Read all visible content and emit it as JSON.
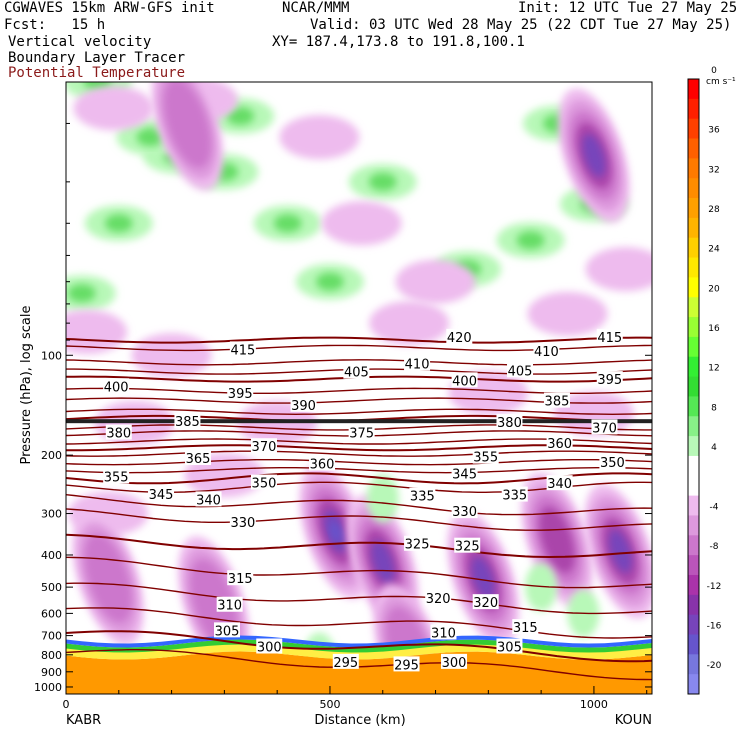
{
  "header": {
    "left_line1": "CGWAVES 15km ARW-GFS init",
    "center_line1": "NCAR/MMM",
    "right_line1": "Init: 12 UTC Tue 27 May 25",
    "left_line2": "Fcst:   15 h",
    "right_line2": "Valid: 03 UTC Wed 28 May 25 (22 CDT Tue 27 May 25)",
    "var1": "Vertical velocity",
    "var2": "Boundary Layer Tracer",
    "var3": "Potential Temperature",
    "xy": "XY= 187.4,173.8 to 191.8,100.1",
    "var3_color": "#8b1a1a"
  },
  "chart_data": {
    "type": "heatmap",
    "title": "Vertical velocity",
    "xlabel": "Distance (km)",
    "ylabel": "Pressure (hPa), log scale",
    "x_ticks": [
      0,
      500,
      1000
    ],
    "x_range": [
      0,
      1110
    ],
    "y_ticks": [
      100,
      200,
      300,
      400,
      500,
      600,
      700,
      800,
      900,
      1000
    ],
    "y_range": [
      15,
      1050
    ],
    "y_scale": "log",
    "left_endpoint": "KABR",
    "right_endpoint": "KOUN",
    "colorbar": {
      "units": "cm s⁻¹",
      "tick_labels": [
        "36",
        "32",
        "28",
        "24",
        "20",
        "16",
        "12",
        "8",
        "4",
        "0",
        "-4",
        "-8",
        "-12",
        "-16",
        "-20"
      ],
      "levels": [
        40,
        38,
        36,
        34,
        32,
        30,
        28,
        26,
        24,
        22,
        20,
        18,
        16,
        14,
        12,
        10,
        8,
        6,
        4,
        2,
        -2,
        -4,
        -6,
        -8,
        -10,
        -12,
        -14,
        -16,
        -18,
        -20,
        -22
      ],
      "colors": [
        "#ff0000",
        "#ff2000",
        "#ff4000",
        "#ff6000",
        "#ff7a00",
        "#ff8c00",
        "#ffa000",
        "#ffb400",
        "#ffd000",
        "#ffe800",
        "#ffff00",
        "#ccff33",
        "#99ff33",
        "#66ff33",
        "#33ee33",
        "#33dd33",
        "#55e855",
        "#88f088",
        "#b8f8b8",
        "#ffffff",
        "#ffffff",
        "#eebbee",
        "#dd99dd",
        "#cc77cc",
        "#bb55bb",
        "#aa33aa",
        "#8833aa",
        "#7744bb",
        "#6655cc",
        "#7777dd",
        "#8888ee"
      ]
    },
    "theta_contours": [
      {
        "value": 415,
        "pressure": 95
      },
      {
        "value": 420,
        "pressure": 90
      },
      {
        "value": 410,
        "pressure": 105
      },
      {
        "value": 405,
        "pressure": 112
      },
      {
        "value": 400,
        "pressure": 118
      },
      {
        "value": 395,
        "pressure": 128
      },
      {
        "value": 390,
        "pressure": 137
      },
      {
        "value": 385,
        "pressure": 148
      },
      {
        "value": 380,
        "pressure": 155
      },
      {
        "value": 375,
        "pressure": 165
      },
      {
        "value": 370,
        "pressure": 172
      },
      {
        "value": 365,
        "pressure": 182
      },
      {
        "value": 360,
        "pressure": 190
      },
      {
        "value": 355,
        "pressure": 198
      },
      {
        "value": 350,
        "pressure": 210
      },
      {
        "value": 345,
        "pressure": 222
      },
      {
        "value": 340,
        "pressure": 235
      },
      {
        "value": 335,
        "pressure": 250
      },
      {
        "value": 330,
        "pressure": 270
      },
      {
        "value": 325,
        "pressure": 300
      },
      {
        "value": 320,
        "pressure": 360
      },
      {
        "value": 315,
        "pressure": 420
      },
      {
        "value": 310,
        "pressure": 500
      },
      {
        "value": 305,
        "pressure": 590
      },
      {
        "value": 300,
        "pressure": 690
      },
      {
        "value": 295,
        "pressure": 780
      }
    ],
    "contour_labels": [
      {
        "text": "415",
        "x": 335,
        "p": 96
      },
      {
        "text": "420",
        "x": 745,
        "p": 88
      },
      {
        "text": "410",
        "x": 910,
        "p": 97
      },
      {
        "text": "415",
        "x": 1030,
        "p": 88
      },
      {
        "text": "400",
        "x": 95,
        "p": 124
      },
      {
        "text": "395",
        "x": 330,
        "p": 130
      },
      {
        "text": "405",
        "x": 550,
        "p": 112
      },
      {
        "text": "410",
        "x": 665,
        "p": 106
      },
      {
        "text": "400",
        "x": 755,
        "p": 119
      },
      {
        "text": "405",
        "x": 860,
        "p": 111
      },
      {
        "text": "395",
        "x": 1030,
        "p": 118
      },
      {
        "text": "390",
        "x": 450,
        "p": 141
      },
      {
        "text": "385",
        "x": 930,
        "p": 137
      },
      {
        "text": "385",
        "x": 230,
        "p": 158
      },
      {
        "text": "380",
        "x": 100,
        "p": 171
      },
      {
        "text": "380",
        "x": 840,
        "p": 159
      },
      {
        "text": "375",
        "x": 560,
        "p": 171
      },
      {
        "text": "370",
        "x": 375,
        "p": 188
      },
      {
        "text": "370",
        "x": 1020,
        "p": 165
      },
      {
        "text": "360",
        "x": 935,
        "p": 184
      },
      {
        "text": "365",
        "x": 250,
        "p": 204
      },
      {
        "text": "360",
        "x": 485,
        "p": 212
      },
      {
        "text": "355",
        "x": 795,
        "p": 202
      },
      {
        "text": "345",
        "x": 755,
        "p": 227
      },
      {
        "text": "350",
        "x": 1035,
        "p": 210
      },
      {
        "text": "355",
        "x": 95,
        "p": 232
      },
      {
        "text": "350",
        "x": 375,
        "p": 242
      },
      {
        "text": "345",
        "x": 180,
        "p": 262
      },
      {
        "text": "340",
        "x": 270,
        "p": 272
      },
      {
        "text": "340",
        "x": 935,
        "p": 243
      },
      {
        "text": "335",
        "x": 675,
        "p": 265
      },
      {
        "text": "335",
        "x": 850,
        "p": 263
      },
      {
        "text": "330",
        "x": 335,
        "p": 318
      },
      {
        "text": "330",
        "x": 755,
        "p": 295
      },
      {
        "text": "325",
        "x": 665,
        "p": 370
      },
      {
        "text": "325",
        "x": 760,
        "p": 375
      },
      {
        "text": "315",
        "x": 330,
        "p": 470
      },
      {
        "text": "320",
        "x": 705,
        "p": 540
      },
      {
        "text": "320",
        "x": 795,
        "p": 555
      },
      {
        "text": "315",
        "x": 870,
        "p": 660
      },
      {
        "text": "310",
        "x": 310,
        "p": 565
      },
      {
        "text": "305",
        "x": 305,
        "p": 675
      },
      {
        "text": "310",
        "x": 715,
        "p": 685
      },
      {
        "text": "300",
        "x": 385,
        "p": 755
      },
      {
        "text": "305",
        "x": 840,
        "p": 755
      },
      {
        "text": "295",
        "x": 530,
        "p": 840
      },
      {
        "text": "295",
        "x": 645,
        "p": 855
      },
      {
        "text": "300",
        "x": 735,
        "p": 840
      }
    ],
    "updraft_cells": [
      {
        "x": 600,
        "p": 270,
        "level": 2
      },
      {
        "x": 980,
        "p": 600,
        "level": 1
      },
      {
        "x": 900,
        "p": 500,
        "level": 1
      },
      {
        "x": 480,
        "p": 810,
        "level": 2
      }
    ],
    "downdraft_cells": [
      {
        "x": 510,
        "p": 340,
        "level": 5
      },
      {
        "x": 600,
        "p": 420,
        "level": 4
      },
      {
        "x": 790,
        "p": 470,
        "level": 4
      },
      {
        "x": 1050,
        "p": 390,
        "level": 4
      },
      {
        "x": 930,
        "p": 360,
        "level": 3
      },
      {
        "x": 1000,
        "p": 25,
        "level": 4
      },
      {
        "x": 280,
        "p": 560,
        "level": 2
      },
      {
        "x": 650,
        "p": 780,
        "level": 2
      },
      {
        "x": 80,
        "p": 470,
        "level": 2
      },
      {
        "x": 230,
        "p": 20,
        "level": 2
      }
    ]
  }
}
